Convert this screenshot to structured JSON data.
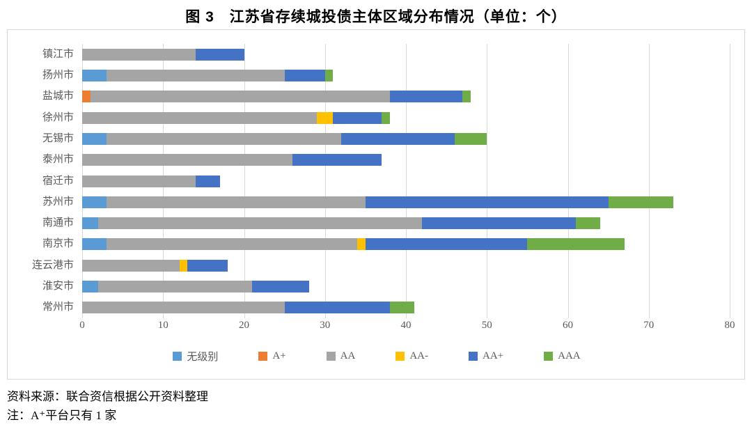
{
  "title": "图 3　江苏省存续城投债主体区域分布情况（单位：个）",
  "chart_data": {
    "type": "bar",
    "orientation": "horizontal",
    "stacked": true,
    "title": "图 3 江苏省存续城投债主体区域分布情况（单位：个）",
    "categories": [
      "镇江市",
      "扬州市",
      "盐城市",
      "徐州市",
      "无锡市",
      "泰州市",
      "宿迁市",
      "苏州市",
      "南通市",
      "南京市",
      "连云港市",
      "淮安市",
      "常州市"
    ],
    "series": [
      {
        "name": "无级别",
        "color": "#5B9BD5",
        "values": [
          0,
          3,
          0,
          0,
          3,
          0,
          0,
          3,
          2,
          3,
          0,
          2,
          0
        ]
      },
      {
        "name": "A+",
        "color": "#ED7D31",
        "values": [
          0,
          0,
          1,
          0,
          0,
          0,
          0,
          0,
          0,
          0,
          0,
          0,
          0
        ]
      },
      {
        "name": "AA",
        "color": "#A5A5A5",
        "values": [
          14,
          22,
          37,
          29,
          29,
          26,
          14,
          32,
          40,
          31,
          12,
          19,
          25
        ]
      },
      {
        "name": "AA-",
        "color": "#FFC000",
        "values": [
          0,
          0,
          0,
          2,
          0,
          0,
          0,
          0,
          0,
          1,
          1,
          0,
          0
        ]
      },
      {
        "name": "AA+",
        "color": "#4472C4",
        "values": [
          6,
          5,
          9,
          6,
          14,
          11,
          3,
          30,
          19,
          20,
          5,
          7,
          13
        ]
      },
      {
        "name": "AAA",
        "color": "#70AD47",
        "values": [
          0,
          1,
          1,
          1,
          4,
          0,
          0,
          8,
          3,
          12,
          0,
          0,
          3
        ]
      }
    ],
    "totals": [
      20,
      31,
      48,
      38,
      50,
      37,
      17,
      73,
      64,
      67,
      18,
      28,
      41
    ],
    "xlim": [
      0,
      80
    ],
    "x_ticks": [
      0,
      10,
      20,
      30,
      40,
      50,
      60,
      70,
      80
    ],
    "grid": true,
    "legend_position": "bottom",
    "gridline_color": "#d9d9d9",
    "axis_label_color": "#595959"
  },
  "footer": {
    "source": "资料来源：联合资信根据公开资料整理",
    "note": "注：A⁺平台只有 1 家"
  }
}
